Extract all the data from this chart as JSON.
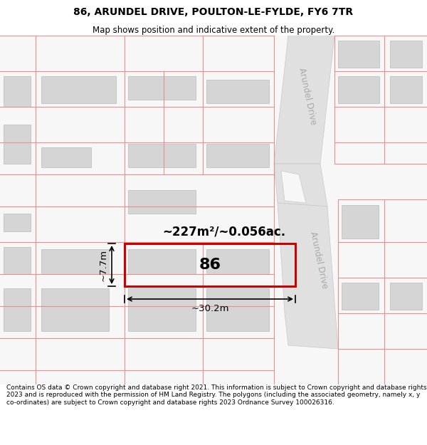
{
  "title_line1": "86, ARUNDEL DRIVE, POULTON-LE-FYLDE, FY6 7TR",
  "title_line2": "Map shows position and indicative extent of the property.",
  "footer_text": "Contains OS data © Crown copyright and database right 2021. This information is subject to Crown copyright and database rights 2023 and is reproduced with the permission of HM Land Registry. The polygons (including the associated geometry, namely x, y co-ordinates) are subject to Crown copyright and database rights 2023 Ordnance Survey 100026316.",
  "map_bg": "#f7f7f7",
  "plot_outline_color": "#e89090",
  "highlight_plot_color": "#cc0000",
  "building_fill": "#d5d5d5",
  "building_stroke": "#bbbbbb",
  "road_fill": "#e0e0e0",
  "road_edge": "#c8c8c8",
  "area_text": "~227m²/~0.056ac.",
  "number_text": "86",
  "width_text": "~30.2m",
  "height_text": "~7.7m",
  "road_label1": "Arundel Drive",
  "road_label2": "Arundel Drive",
  "figsize": [
    6.0,
    6.25
  ],
  "dpi": 100,
  "title_fontsize": 10,
  "subtitle_fontsize": 8.5,
  "footer_fontsize": 6.5
}
